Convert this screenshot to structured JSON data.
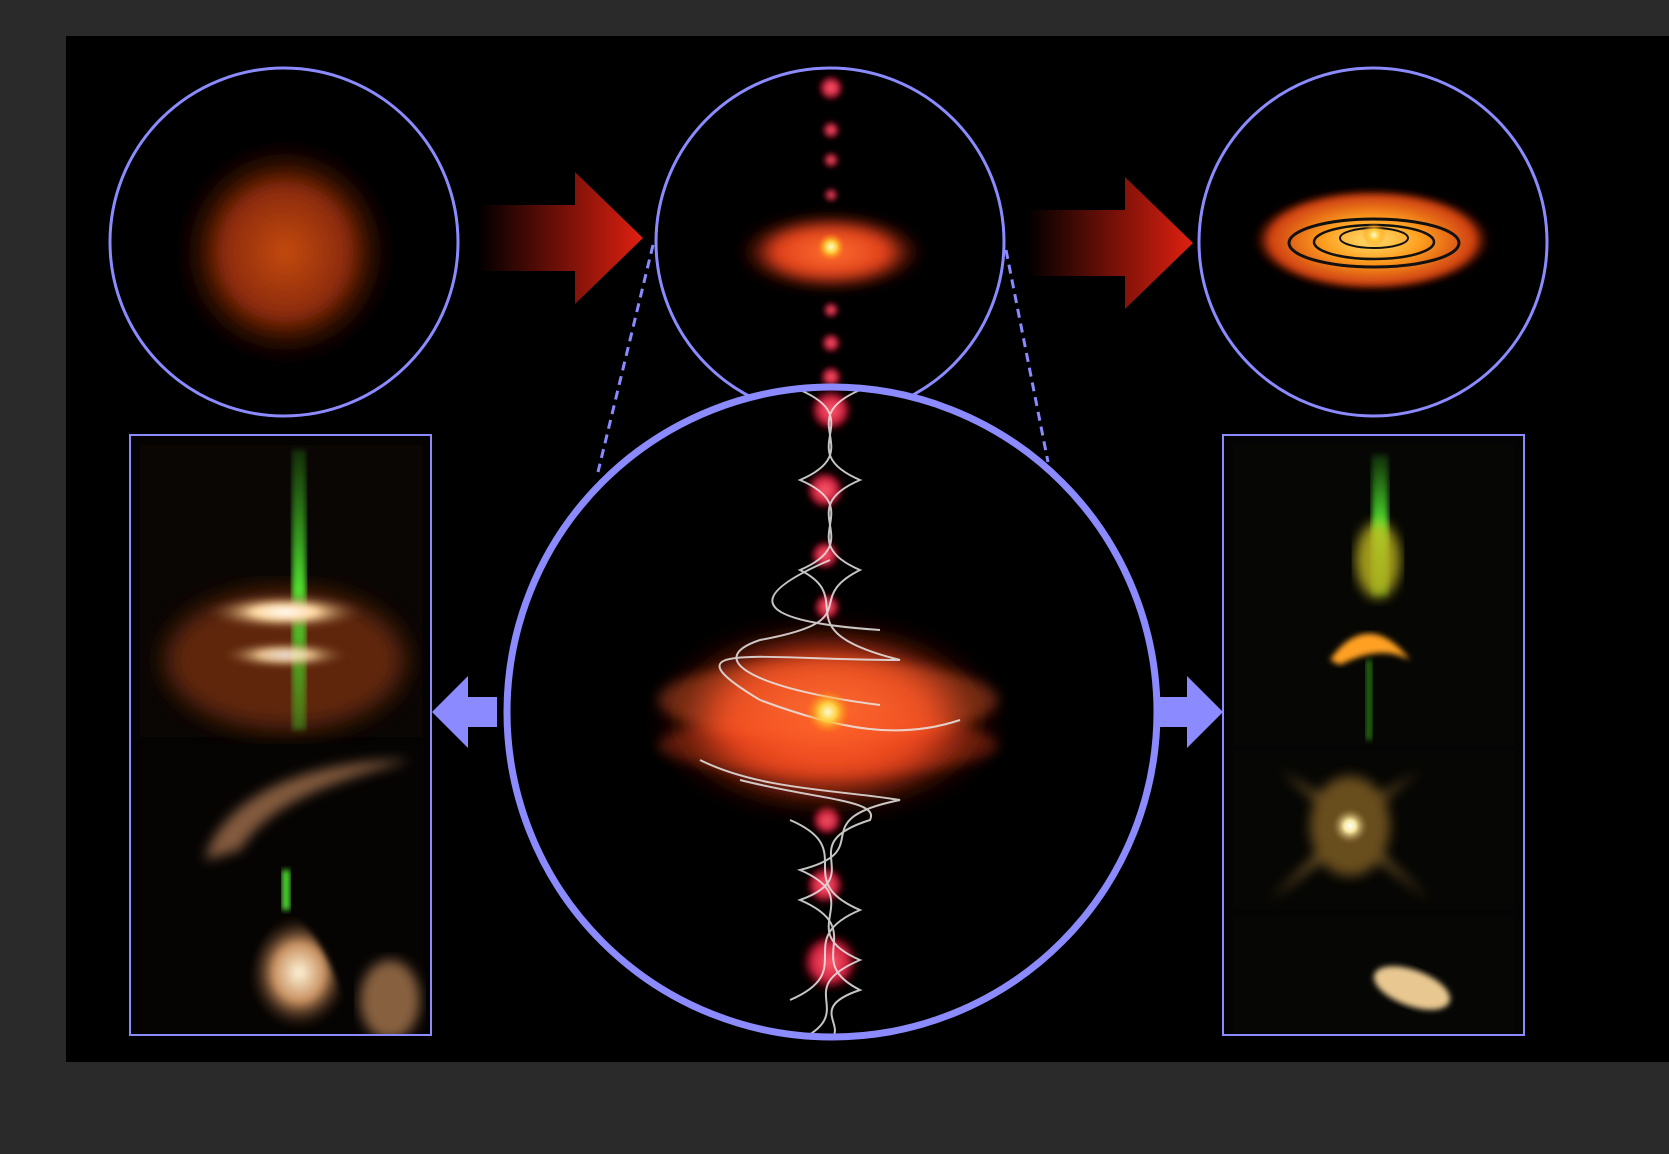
{
  "figure": {
    "stages": [
      {
        "name": "collapsing-cloud"
      },
      {
        "name": "protostar-disk-with-jets"
      },
      {
        "name": "planetary-disk"
      }
    ],
    "insets": [
      {
        "name": "left-observation-panel",
        "images": 2
      },
      {
        "name": "right-observation-panel",
        "images": 3
      }
    ],
    "colors": {
      "outline": "#8b8bff",
      "stage_arrow": "#e02010",
      "background": "#000000",
      "frame": "#2a2a2a",
      "jet": "#40d020",
      "disk": "#ff5020",
      "core": "#ffe060"
    }
  }
}
